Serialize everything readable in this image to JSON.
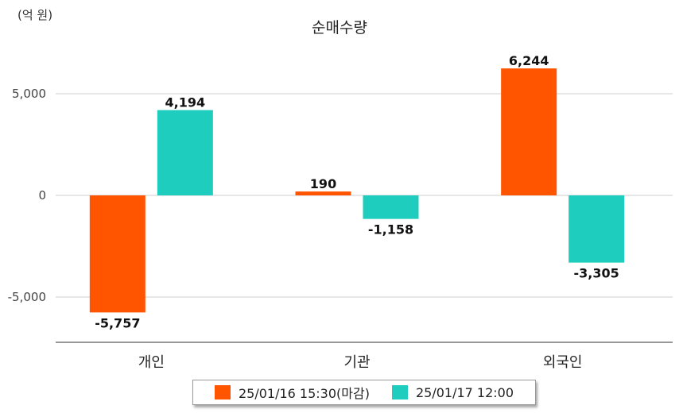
{
  "chart_data": {
    "type": "bar",
    "title": "순매수량",
    "unit_label": "(억 원)",
    "categories": [
      "개인",
      "기관",
      "외국인"
    ],
    "series": [
      {
        "name": "25/01/16 15:30(마감)",
        "color": "#ff5500",
        "values": [
          -5757,
          190,
          6244
        ]
      },
      {
        "name": "25/01/17 12:00",
        "color": "#1ecdbd",
        "values": [
          4194,
          -1158,
          -3305
        ]
      }
    ],
    "data_labels": [
      [
        "-5,757",
        "190",
        "6,244"
      ],
      [
        "4,194",
        "-1,158",
        "-3,305"
      ]
    ],
    "y_ticks": [
      5000,
      0,
      -5000
    ],
    "y_tick_labels": [
      "5,000",
      "0",
      "-5,000"
    ],
    "ylim": [
      -7200,
      7200
    ],
    "grid": true,
    "legend_position": "bottom"
  }
}
